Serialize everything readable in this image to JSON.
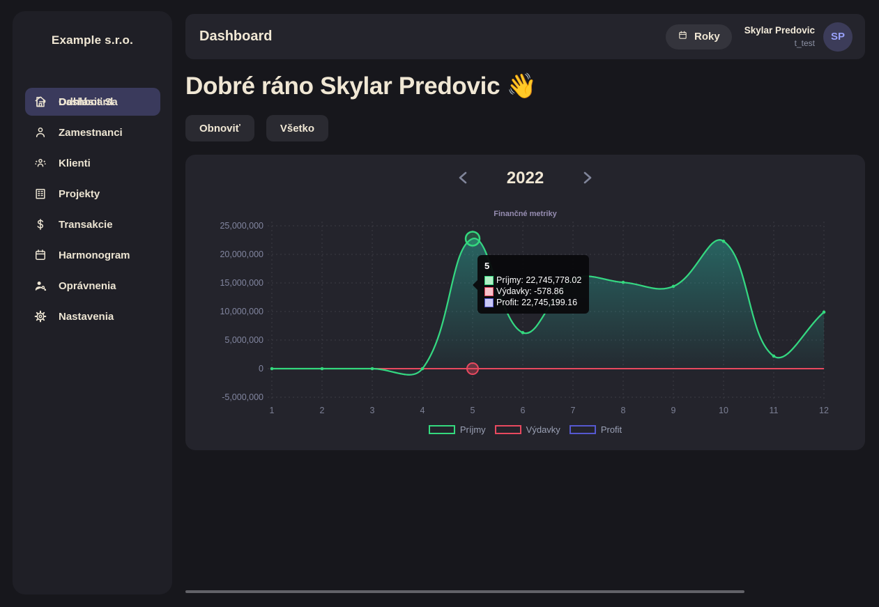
{
  "company_name": "Example s.r.o.",
  "sidebar": {
    "items": [
      {
        "label": "Dashboard",
        "icon": "home",
        "active": true
      },
      {
        "label": "Zamestnanci",
        "icon": "person",
        "active": false
      },
      {
        "label": "Klienti",
        "icon": "people",
        "active": false
      },
      {
        "label": "Projekty",
        "icon": "building",
        "active": false
      },
      {
        "label": "Transakcie",
        "icon": "dollar",
        "active": false
      },
      {
        "label": "Harmonogram",
        "icon": "calendar",
        "active": false
      },
      {
        "label": "Oprávnenia",
        "icon": "person-key",
        "active": false
      },
      {
        "label": "Nastavenia",
        "icon": "gear",
        "active": false
      }
    ],
    "logout": {
      "label": "Odhlásiť Sa",
      "icon": "logout"
    }
  },
  "header": {
    "title": "Dashboard",
    "period_button": {
      "label": "Roky",
      "icon": "calendar"
    },
    "user": {
      "name": "Skylar Predovic",
      "username": "t_test",
      "initials": "SP"
    }
  },
  "main": {
    "greeting": "Dobré ráno Skylar Predovic",
    "greeting_emoji": "👋",
    "action_buttons": [
      {
        "label": "Obnoviť"
      },
      {
        "label": "Všetko"
      }
    ]
  },
  "year_nav": {
    "year": "2022"
  },
  "chart_data": {
    "type": "area",
    "title": "Finančné metriky",
    "categories": [
      "1",
      "2",
      "3",
      "4",
      "5",
      "6",
      "7",
      "8",
      "9",
      "10",
      "11",
      "12"
    ],
    "series": [
      {
        "name": "Príjmy",
        "color": "#34d97e",
        "fill": "teal-gradient",
        "values": [
          0,
          0,
          0,
          0,
          22745778.02,
          6300000,
          15600000,
          15100000,
          14400000,
          22300000,
          2200000,
          9900000
        ]
      },
      {
        "name": "Výdavky",
        "color": "#e8495f",
        "fill": "none",
        "values": [
          0,
          0,
          0,
          0,
          -578.86,
          0,
          0,
          0,
          0,
          0,
          0,
          0
        ]
      },
      {
        "name": "Profit",
        "color": "#5558cf",
        "fill": "none",
        "values": [
          0,
          0,
          0,
          0,
          22745199.16,
          6300000,
          15600000,
          15100000,
          14400000,
          22300000,
          2200000,
          9900000
        ]
      }
    ],
    "ylim": [
      -5000000,
      25000000
    ],
    "yticks": [
      {
        "value": 25000000,
        "label": "25,000,000"
      },
      {
        "value": 20000000,
        "label": "20,000,000"
      },
      {
        "value": 15000000,
        "label": "15,000,000"
      },
      {
        "value": 10000000,
        "label": "10,000,000"
      },
      {
        "value": 5000000,
        "label": "5,000,000"
      },
      {
        "value": 0,
        "label": "0"
      },
      {
        "value": -5000000,
        "label": "-5,000,000"
      }
    ],
    "grid": "dotted",
    "legend_position": "bottom",
    "highlight": {
      "month": 5
    }
  },
  "tooltip": {
    "title": "5",
    "rows": [
      {
        "text": "Príjmy: 22,745,778.02",
        "swatch_fill": "#b2efc6",
        "swatch_border": "#34d97e"
      },
      {
        "text": "Výdavky: -578.86",
        "swatch_fill": "#f6c2cb",
        "swatch_border": "#e8495f"
      },
      {
        "text": "Profit: 22,745,199.16",
        "swatch_fill": "#c9c9f5",
        "swatch_border": "#5558cf"
      }
    ]
  },
  "colors": {
    "page_bg": "#17171c",
    "panel_bg": "#1f1f26",
    "card_bg": "#24242c",
    "accent_cream": "#f0e7d4",
    "active_item_bg": "#3a3a5c",
    "muted_text": "#8e93a6",
    "axis_text": "#7e8296",
    "chart_title": "#968db1",
    "green": "#34d97e",
    "red": "#e8495f",
    "blue": "#5558cf",
    "tooltip_bg": "#09090c"
  }
}
